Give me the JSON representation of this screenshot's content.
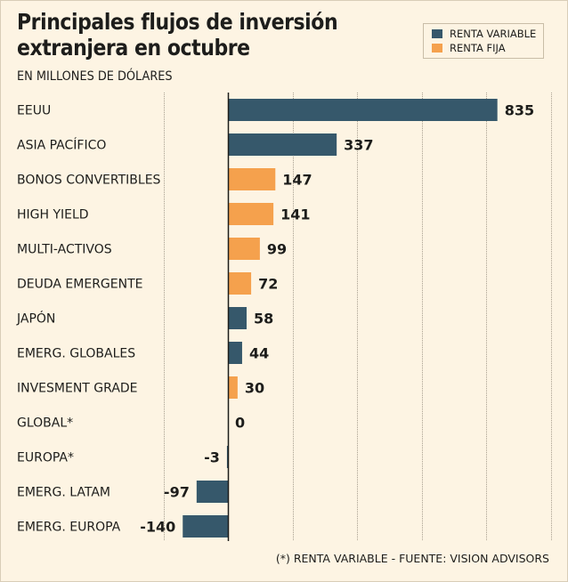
{
  "title_lines": [
    "Principales flujos de inversión",
    "extranjera en octubre"
  ],
  "subtitle": "EN MILLONES DE DÓLARES",
  "legend": [
    {
      "label": "RENTA VARIABLE",
      "color": "#36586b"
    },
    {
      "label": "RENTA FIJA",
      "color": "#f5a14d"
    }
  ],
  "footnote": "(*) RENTA VARIABLE - FUENTE: VISION ADVISORS",
  "colors": {
    "renta_variable": "#36586b",
    "renta_fija": "#f5a14d",
    "grid": "#a89f90",
    "axis": "#1d1d1b"
  },
  "chart_data": {
    "type": "bar",
    "orientation": "horizontal",
    "title": "Principales flujos de inversión extranjera en octubre",
    "subtitle": "EN MILLONES DE DÓLARES",
    "xlim": [
      -200,
      1000
    ],
    "grid_values": [
      -200,
      0,
      200,
      400,
      600,
      800,
      1000
    ],
    "categories": [
      "EEUU",
      "ASIA PACÍFICO",
      "BONOS CONVERTIBLES",
      "HIGH YIELD",
      "MULTI-ACTIVOS",
      "DEUDA EMERGENTE",
      "JAPÓN",
      "EMERG. GLOBALES",
      "INVESMENT GRADE",
      "GLOBAL*",
      "EUROPA*",
      "EMERG. LATAM",
      "EMERG. EUROPA"
    ],
    "values": [
      835,
      337,
      147,
      141,
      99,
      72,
      58,
      44,
      30,
      0,
      -3,
      -97,
      -140
    ],
    "types": [
      "RENTA VARIABLE",
      "RENTA VARIABLE",
      "RENTA FIJA",
      "RENTA FIJA",
      "RENTA FIJA",
      "RENTA FIJA",
      "RENTA VARIABLE",
      "RENTA VARIABLE",
      "RENTA FIJA",
      "RENTA VARIABLE",
      "RENTA VARIABLE",
      "RENTA VARIABLE",
      "RENTA VARIABLE"
    ],
    "value_labels": [
      "835",
      "337",
      "147",
      "141",
      "99",
      "72",
      "58",
      "44",
      "30",
      "0",
      "-3",
      "-97",
      "-140"
    ]
  }
}
